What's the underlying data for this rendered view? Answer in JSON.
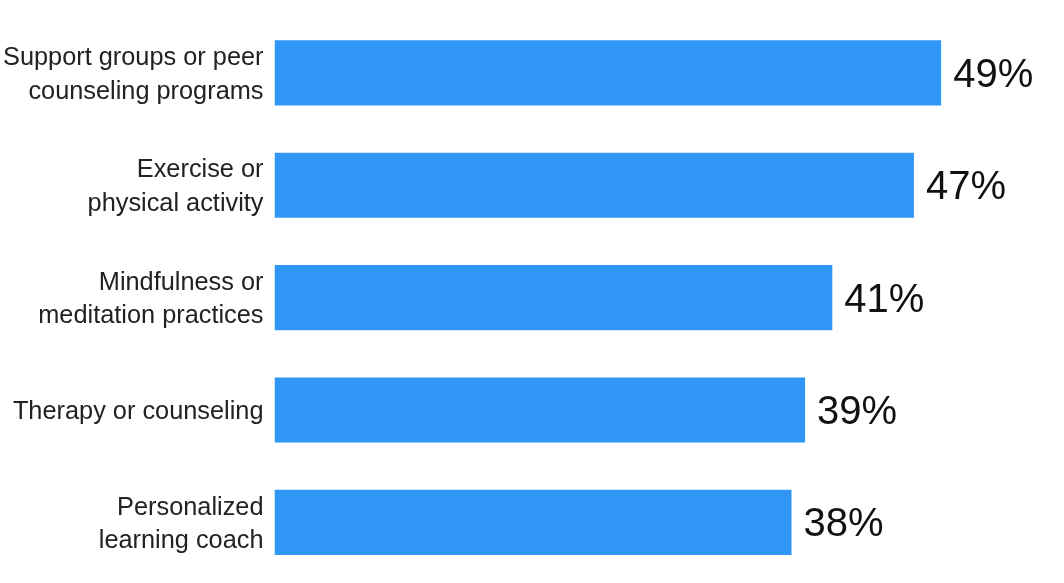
{
  "chart_data": {
    "type": "bar",
    "orientation": "horizontal",
    "categories": [
      "Support groups or peer\ncounseling programs",
      "Exercise or\nphysical activity",
      "Mindfulness or\nmeditation practices",
      "Therapy or counseling",
      "Personalized\nlearning coach"
    ],
    "values": [
      49,
      47,
      41,
      39,
      38
    ],
    "value_labels": [
      "49%",
      "47%",
      "41%",
      "39%",
      "38%"
    ],
    "color": "#3097f7"
  }
}
